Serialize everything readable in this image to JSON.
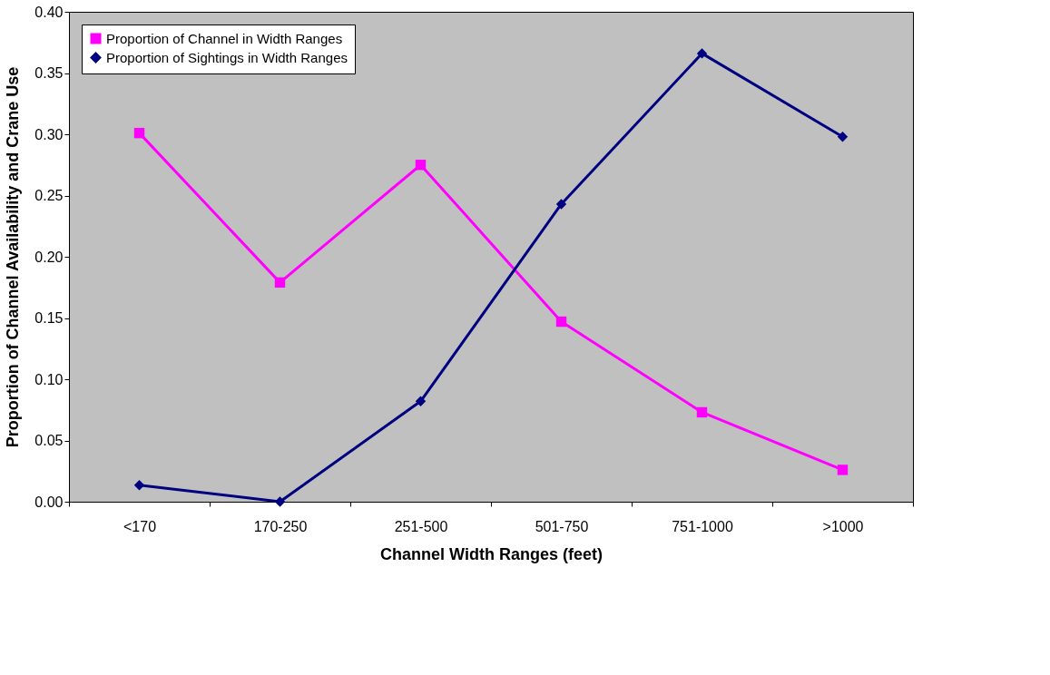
{
  "chart_data": {
    "type": "line",
    "xlabel": "Channel Width Ranges (feet)",
    "ylabel": "Proportion of Channel Availability and Crane Use",
    "categories": [
      "<170",
      "170-250",
      "251-500",
      "501-750",
      "751-1000",
      ">1000"
    ],
    "series": [
      {
        "name": "Proportion of Channel in Width Ranges",
        "color": "#ff00ff",
        "marker": "square",
        "values": [
          0.301,
          0.179,
          0.275,
          0.147,
          0.073,
          0.026
        ]
      },
      {
        "name": "Proportion of Sightings in Width Ranges",
        "color": "#000080",
        "marker": "diamond",
        "values": [
          0.0135,
          0.0,
          0.082,
          0.243,
          0.366,
          0.298
        ]
      }
    ],
    "ylim": [
      0,
      0.4
    ],
    "yticks": [
      {
        "value": 0,
        "label": "0.00"
      },
      {
        "value": 0.05,
        "label": "0.05"
      },
      {
        "value": 0.1,
        "label": "0.10"
      },
      {
        "value": 0.15,
        "label": "0.15"
      },
      {
        "value": 0.2,
        "label": "0.20"
      },
      {
        "value": 0.25,
        "label": "0.25"
      },
      {
        "value": 0.3,
        "label": "0.30"
      },
      {
        "value": 0.35,
        "label": "0.35"
      },
      {
        "value": 0.4,
        "label": "0.40"
      }
    ],
    "grid": false,
    "legend": "top left",
    "line_style": "solid"
  }
}
